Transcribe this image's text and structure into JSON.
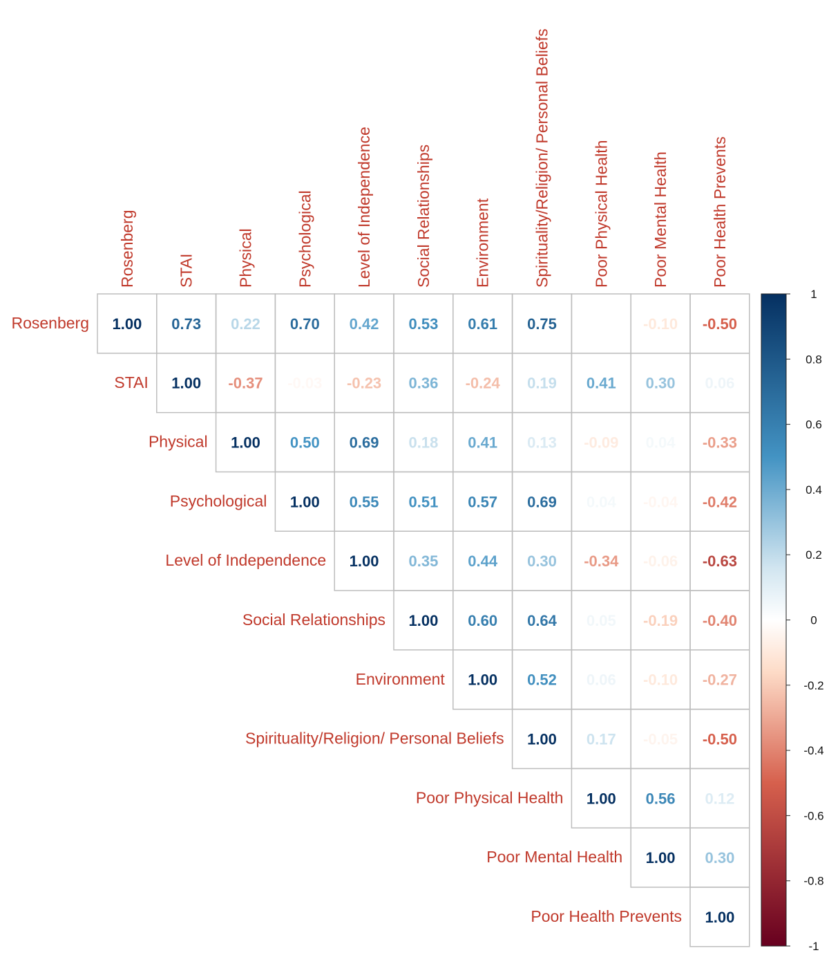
{
  "chart_data": {
    "type": "heatmap",
    "title": "",
    "variables": [
      "Rosenberg",
      "STAI",
      "Physical",
      "Psychological",
      "Level of Independence",
      "Social Relationships",
      "Environment",
      "Spirituality/Religion/ Personal Beliefs",
      "Poor Physical Health",
      "Poor Mental Health",
      "Poor Health Prevents"
    ],
    "matrix": [
      [
        1.0,
        0.73,
        0.22,
        0.7,
        0.42,
        0.53,
        0.61,
        0.75,
        0.0,
        -0.1,
        -0.5
      ],
      [
        null,
        1.0,
        -0.37,
        -0.03,
        -0.23,
        0.36,
        -0.24,
        0.19,
        0.41,
        0.3,
        0.06
      ],
      [
        null,
        null,
        1.0,
        0.5,
        0.69,
        0.18,
        0.41,
        0.13,
        -0.09,
        0.04,
        -0.33
      ],
      [
        null,
        null,
        null,
        1.0,
        0.55,
        0.51,
        0.57,
        0.69,
        0.04,
        -0.04,
        -0.42
      ],
      [
        null,
        null,
        null,
        null,
        1.0,
        0.35,
        0.44,
        0.3,
        -0.34,
        -0.06,
        -0.63
      ],
      [
        null,
        null,
        null,
        null,
        null,
        1.0,
        0.6,
        0.64,
        0.05,
        -0.19,
        -0.4
      ],
      [
        null,
        null,
        null,
        null,
        null,
        null,
        1.0,
        0.52,
        0.06,
        -0.1,
        -0.27
      ],
      [
        null,
        null,
        null,
        null,
        null,
        null,
        null,
        1.0,
        0.17,
        -0.05,
        -0.5
      ],
      [
        null,
        null,
        null,
        null,
        null,
        null,
        null,
        null,
        1.0,
        0.56,
        0.12
      ],
      [
        null,
        null,
        null,
        null,
        null,
        null,
        null,
        null,
        null,
        1.0,
        0.3
      ],
      [
        null,
        null,
        null,
        null,
        null,
        null,
        null,
        null,
        null,
        null,
        1.0
      ]
    ],
    "colorbar": {
      "range": [
        -1,
        1
      ],
      "ticks": [
        "1",
        "0.8",
        "0.6",
        "0.4",
        "0.2",
        "0",
        "-0.2",
        "-0.4",
        "-0.6",
        "-0.8",
        "-1"
      ],
      "colors": {
        "neg_strong": "#67001f",
        "neg_mid": "#d6604d",
        "neg_light": "#fddbc7",
        "zero": "#ffffff",
        "pos_light": "#d1e5f0",
        "pos_mid": "#4393c3",
        "pos_strong": "#053061"
      }
    },
    "label_color": "#c0392b"
  }
}
